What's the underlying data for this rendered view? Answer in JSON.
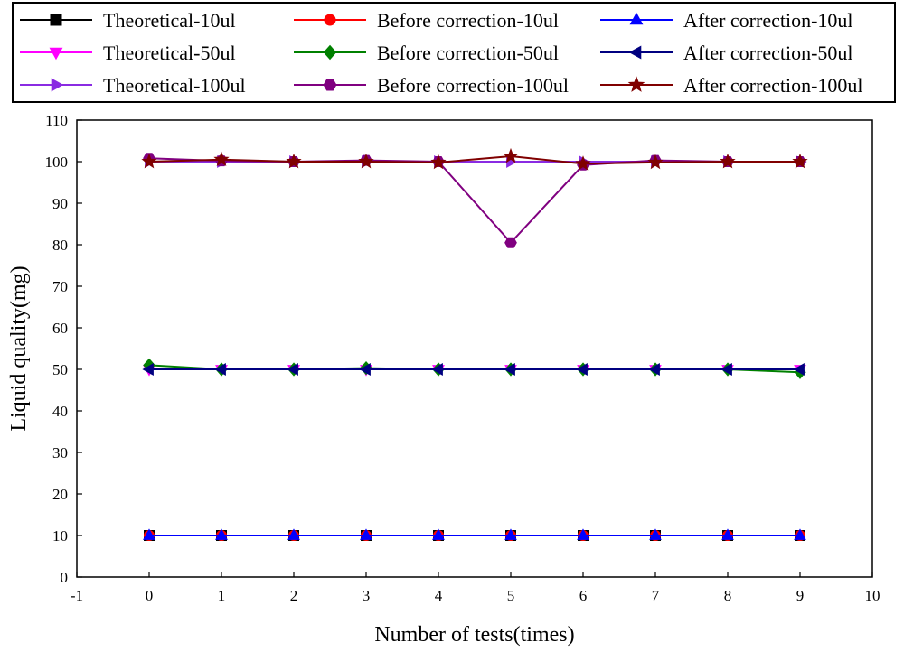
{
  "chart_data": {
    "type": "line",
    "xlabel": "Number of tests(times)",
    "ylabel": "Liquid quality(mg)",
    "xlim": [
      -1,
      10
    ],
    "ylim": [
      0,
      110
    ],
    "xticks": [
      -1,
      0,
      1,
      2,
      3,
      4,
      5,
      6,
      7,
      8,
      9,
      10
    ],
    "yticks": [
      0,
      10,
      20,
      30,
      40,
      50,
      60,
      70,
      80,
      90,
      100,
      110
    ],
    "grid": false,
    "legend_position": "top",
    "x": [
      0,
      1,
      2,
      3,
      4,
      5,
      6,
      7,
      8,
      9
    ],
    "series": [
      {
        "name": "Theoretical-10ul",
        "color": "#000000",
        "marker": "square",
        "values": [
          10,
          10,
          10,
          10,
          10,
          10,
          10,
          10,
          10,
          10
        ]
      },
      {
        "name": "Before correction-10ul",
        "color": "#ff0000",
        "marker": "circle",
        "values": [
          10,
          10,
          10,
          10,
          10,
          10,
          10,
          10,
          10,
          10
        ]
      },
      {
        "name": "After correction-10ul",
        "color": "#0000ff",
        "marker": "triangle-up",
        "values": [
          10,
          10,
          10,
          10,
          10,
          10,
          10,
          10,
          10,
          10
        ]
      },
      {
        "name": "Theoretical-50ul",
        "color": "#ff00ff",
        "marker": "triangle-down",
        "values": [
          50,
          50,
          50,
          50,
          50,
          50,
          50,
          50,
          50,
          50
        ]
      },
      {
        "name": "Before correction-50ul",
        "color": "#008000",
        "marker": "diamond",
        "values": [
          51,
          50,
          50,
          50.3,
          50,
          50,
          50,
          50,
          50,
          49.3
        ]
      },
      {
        "name": "After correction-50ul",
        "color": "#000080",
        "marker": "triangle-left",
        "values": [
          50,
          50,
          50,
          50,
          50,
          50,
          50,
          50,
          50,
          50
        ]
      },
      {
        "name": "Theoretical-100ul",
        "color": "#8a2be2",
        "marker": "triangle-right",
        "values": [
          100,
          100,
          100,
          100,
          100,
          100,
          100,
          100,
          100,
          100
        ]
      },
      {
        "name": "Before correction-100ul",
        "color": "#800080",
        "marker": "hexagon",
        "values": [
          100.8,
          100.2,
          100,
          100.3,
          100,
          80.5,
          99.2,
          100.3,
          100,
          100
        ]
      },
      {
        "name": "After correction-100ul",
        "color": "#800000",
        "marker": "star",
        "values": [
          100,
          100.5,
          100,
          100,
          99.8,
          101.3,
          99.5,
          99.8,
          100,
          100
        ]
      }
    ]
  }
}
